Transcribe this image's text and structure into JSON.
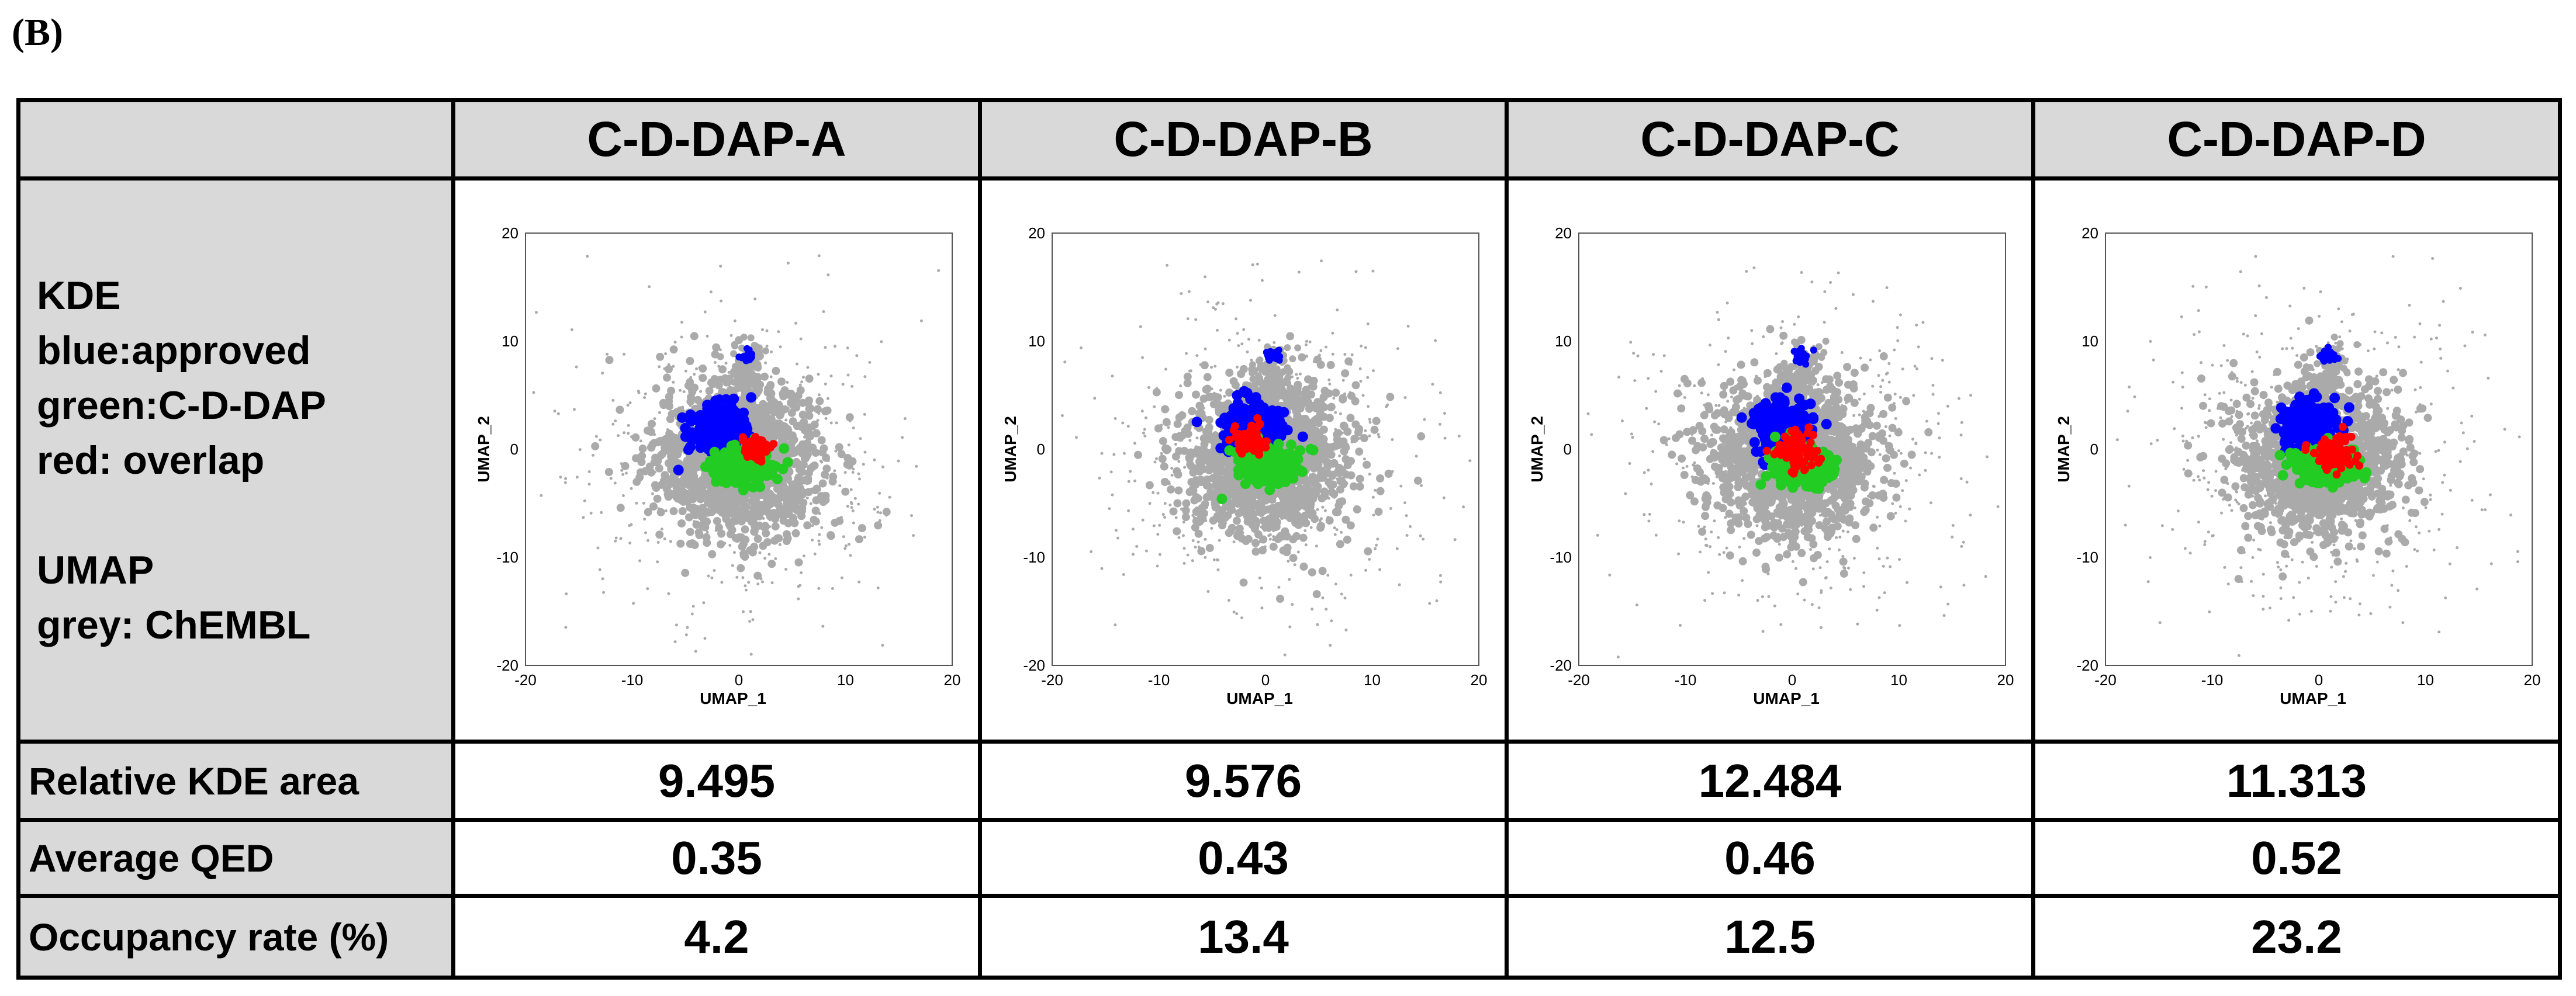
{
  "panel_label": "(B)",
  "columns": [
    "C-D-DAP-A",
    "C-D-DAP-B",
    "C-D-DAP-C",
    "C-D-DAP-D"
  ],
  "legend_lines": [
    "KDE",
    "blue:approved",
    "green:C-D-DAP",
    "red: overlap",
    "",
    "UMAP",
    "grey: ChEMBL"
  ],
  "legend": {
    "line1": "KDE",
    "line2": "blue:approved",
    "line3": "green:C-D-DAP",
    "line4": "red: overlap",
    "line5": "UMAP",
    "line6": "grey: ChEMBL"
  },
  "colors": {
    "approved": "#0000ff",
    "cddap": "#22cc22",
    "overlap": "#ff0000",
    "chembl": "#aaaaaa",
    "header_bg": "#d9d9d9"
  },
  "rows": {
    "relative_kde_area": {
      "label": "Relative KDE area",
      "values": [
        "9.495",
        "9.576",
        "12.484",
        "11.313"
      ]
    },
    "average_qed": {
      "label": "Average QED",
      "values": [
        "0.35",
        "0.43",
        "0.46",
        "0.52"
      ]
    },
    "occupancy_rate": {
      "label": "Occupancy rate (%)",
      "values": [
        "4.2",
        "13.4",
        "12.5",
        "23.2"
      ]
    }
  },
  "chart_data": [
    {
      "type": "scatter",
      "title": "C-D-DAP-A",
      "xlabel": "UMAP_1",
      "ylabel": "UMAP_2",
      "xlim": [
        -20,
        20
      ],
      "ylim": [
        -20,
        20
      ],
      "xticks": [
        "-20",
        "-10",
        "0",
        "10",
        "20"
      ],
      "yticks": [
        "20",
        "10",
        "0",
        "-10",
        "-20"
      ],
      "layers": [
        {
          "name": "ChEMBL",
          "color": "#aaaaaa",
          "center": [
            0,
            -1
          ],
          "spread": 7
        },
        {
          "name": "approved",
          "color": "#0000ff",
          "center": [
            -1.5,
            1.8
          ],
          "spread": 2.2,
          "extra_cluster": [
            0.8,
            8.6
          ]
        },
        {
          "name": "C-D-DAP",
          "color": "#22cc22",
          "center": [
            0.5,
            -1.5
          ],
          "spread": 2.5
        },
        {
          "name": "overlap",
          "color": "#ff0000",
          "center": [
            1.5,
            0
          ],
          "spread": 1.0
        }
      ]
    },
    {
      "type": "scatter",
      "title": "C-D-DAP-B",
      "xlabel": "UMAP_1",
      "ylabel": "UMAP_2",
      "xlim": [
        -20,
        20
      ],
      "ylim": [
        -20,
        20
      ],
      "xticks": [
        "-20",
        "-10",
        "0",
        "10",
        "20"
      ],
      "yticks": [
        "20",
        "10",
        "0",
        "-10",
        "-20"
      ],
      "layers": [
        {
          "name": "ChEMBL",
          "color": "#aaaaaa",
          "center": [
            0,
            -1
          ],
          "spread": 7
        },
        {
          "name": "approved",
          "color": "#0000ff",
          "center": [
            -1.2,
            2.0
          ],
          "spread": 2.2,
          "extra_cluster": [
            0.8,
            8.6
          ]
        },
        {
          "name": "C-D-DAP",
          "color": "#22cc22",
          "center": [
            0,
            -1.5
          ],
          "spread": 2.4
        },
        {
          "name": "overlap",
          "color": "#ff0000",
          "center": [
            -1.5,
            0.8
          ],
          "spread": 1.1
        }
      ]
    },
    {
      "type": "scatter",
      "title": "C-D-DAP-C",
      "xlabel": "UMAP_1",
      "ylabel": "UMAP_2",
      "xlim": [
        -20,
        20
      ],
      "ylim": [
        -20,
        20
      ],
      "xticks": [
        "-20",
        "-10",
        "0",
        "10",
        "20"
      ],
      "yticks": [
        "20",
        "10",
        "0",
        "-10",
        "-20"
      ],
      "layers": [
        {
          "name": "ChEMBL",
          "color": "#aaaaaa",
          "center": [
            0,
            -1
          ],
          "spread": 7
        },
        {
          "name": "approved",
          "color": "#0000ff",
          "center": [
            -1.0,
            1.8
          ],
          "spread": 2.3,
          "extra_cluster": [
            0.8,
            8.6
          ]
        },
        {
          "name": "C-D-DAP",
          "color": "#22cc22",
          "center": [
            1.0,
            -1.5
          ],
          "spread": 2.6
        },
        {
          "name": "overlap",
          "color": "#ff0000",
          "center": [
            0.5,
            -0.2
          ],
          "spread": 1.6
        }
      ]
    },
    {
      "type": "scatter",
      "title": "C-D-DAP-D",
      "xlabel": "UMAP_1",
      "ylabel": "UMAP_2",
      "xlim": [
        -20,
        20
      ],
      "ylim": [
        -20,
        20
      ],
      "xticks": [
        "-20",
        "-10",
        "0",
        "10",
        "20"
      ],
      "yticks": [
        "20",
        "10",
        "0",
        "-10",
        "-20"
      ],
      "layers": [
        {
          "name": "ChEMBL",
          "color": "#aaaaaa",
          "center": [
            0,
            -1
          ],
          "spread": 7
        },
        {
          "name": "approved",
          "color": "#0000ff",
          "center": [
            -0.8,
            2.0
          ],
          "spread": 2.1,
          "extra_cluster": [
            0.8,
            8.6
          ]
        },
        {
          "name": "C-D-DAP",
          "color": "#22cc22",
          "center": [
            0.5,
            -1.5
          ],
          "spread": 2.3
        },
        {
          "name": "overlap",
          "color": "#ff0000",
          "center": [
            1.5,
            -0.3
          ],
          "spread": 1.5
        }
      ]
    }
  ]
}
